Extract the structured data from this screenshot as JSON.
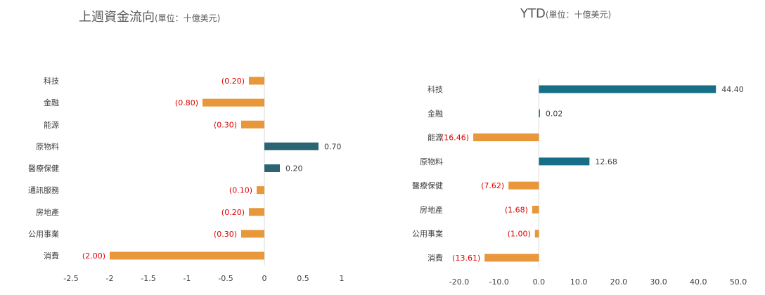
{
  "chart_data": [
    {
      "type": "bar",
      "orientation": "horizontal",
      "title": "上週資金流向",
      "subtitle": "(單位：十億美元)",
      "categories": [
        "科技",
        "金融",
        "能源",
        "原物料",
        "醫療保健",
        "通訊服務",
        "房地產",
        "公用事業",
        "消費"
      ],
      "values": [
        -0.2,
        -0.8,
        -0.3,
        0.7,
        0.2,
        -0.1,
        -0.2,
        -0.3,
        -2.0
      ],
      "value_labels": [
        "(0.20)",
        "(0.80)",
        "(0.30)",
        "0.70",
        "0.20",
        "(0.10)",
        "(0.20)",
        "(0.30)",
        "(2.00)"
      ],
      "xlim": [
        -2.5,
        1
      ],
      "xticks": [
        -2.5,
        -2,
        -1.5,
        -1,
        -0.5,
        0,
        0.5,
        1
      ],
      "xtick_labels": [
        "-2.5",
        "-2",
        "-1.5",
        "-1",
        "-0.5",
        "0",
        "0.5",
        "1"
      ],
      "grid": false,
      "colors": {
        "negative": "#e8973a",
        "positive": "#2b6573",
        "negative_label": "#e00000"
      }
    },
    {
      "type": "bar",
      "orientation": "horizontal",
      "title": "YTD",
      "subtitle": "(單位：十億美元)",
      "categories": [
        "科技",
        "金融",
        "能源",
        "原物料",
        "醫療保健",
        "房地產",
        "公用事業",
        "消費"
      ],
      "values": [
        44.4,
        0.02,
        -16.46,
        12.68,
        -7.62,
        -1.68,
        -1.0,
        -13.61
      ],
      "value_labels": [
        "44.40",
        "0.02",
        "(16.46)",
        "12.68",
        "(7.62)",
        "(1.68)",
        "(1.00)",
        "(13.61)"
      ],
      "xlim": [
        -20,
        50
      ],
      "xticks": [
        -20,
        -10,
        0,
        10,
        20,
        30,
        40,
        50
      ],
      "xtick_labels": [
        "-20.0",
        "-10.0",
        "0.0",
        "10.0",
        "20.0",
        "30.0",
        "40.0",
        "50.0"
      ],
      "grid": false,
      "colors": {
        "negative": "#e8973a",
        "positive": "#166f86",
        "negative_label": "#e00000"
      }
    }
  ]
}
